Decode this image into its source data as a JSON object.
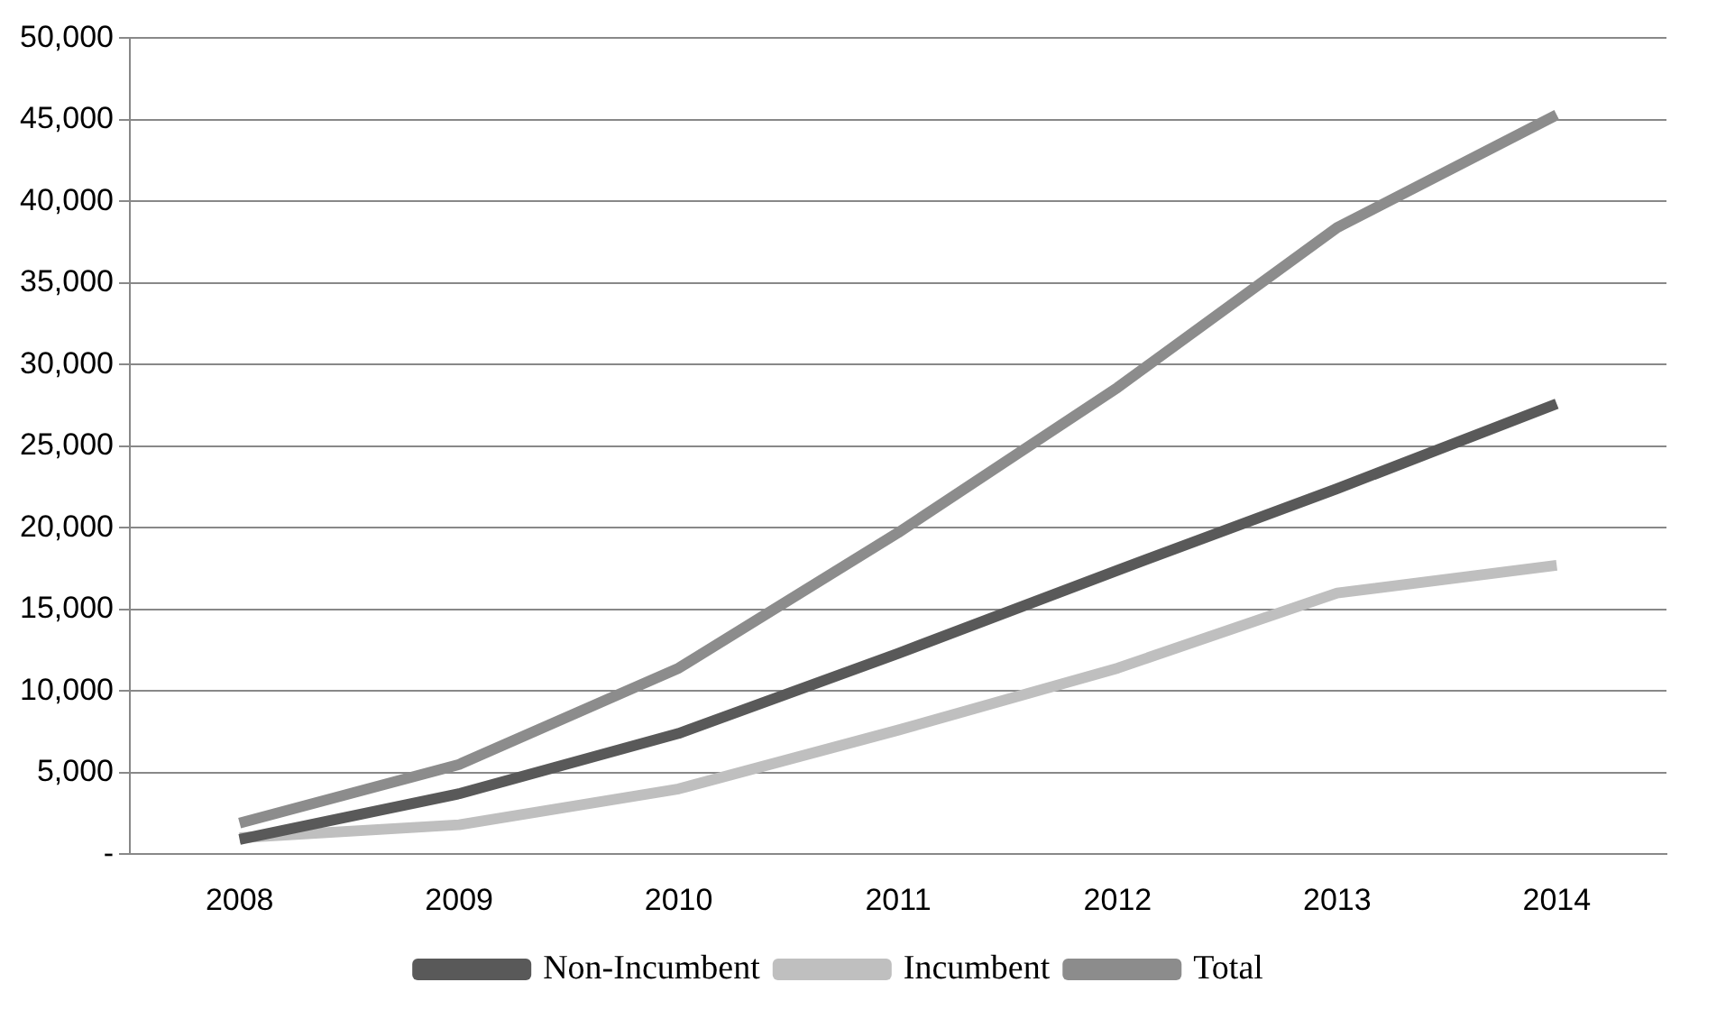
{
  "chart_data": {
    "type": "line",
    "categories": [
      "2008",
      "2009",
      "2010",
      "2011",
      "2012",
      "2013",
      "2014"
    ],
    "series": [
      {
        "name": "Non-Incumbent",
        "color": "#595959",
        "values": [
          900,
          3700,
          7400,
          12300,
          17400,
          22400,
          27600
        ]
      },
      {
        "name": "Incumbent",
        "color": "#bfbfbf",
        "values": [
          1000,
          1800,
          4000,
          7600,
          11400,
          16000,
          17700
        ]
      },
      {
        "name": "Total",
        "color": "#8c8c8c",
        "values": [
          1900,
          5500,
          11400,
          19700,
          28600,
          38400,
          45300
        ]
      }
    ],
    "ylim": [
      0,
      50000
    ],
    "yticks": [
      {
        "value": 0,
        "label": "-"
      },
      {
        "value": 5000,
        "label": "5,000"
      },
      {
        "value": 10000,
        "label": "10,000"
      },
      {
        "value": 15000,
        "label": "15,000"
      },
      {
        "value": 20000,
        "label": "20,000"
      },
      {
        "value": 25000,
        "label": "25,000"
      },
      {
        "value": 30000,
        "label": "30,000"
      },
      {
        "value": 35000,
        "label": "35,000"
      },
      {
        "value": 40000,
        "label": "40,000"
      },
      {
        "value": 45000,
        "label": "45,000"
      },
      {
        "value": 50000,
        "label": "50,000"
      }
    ],
    "grid": "y",
    "legend": "bottom",
    "marker": "none",
    "line_style": "solid"
  }
}
